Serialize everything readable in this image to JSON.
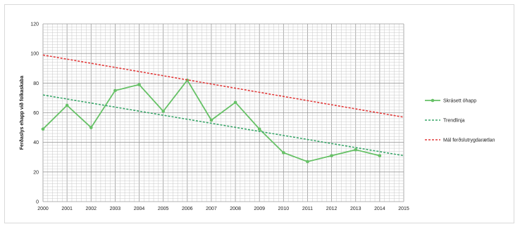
{
  "colors": {
    "series": "#66c166",
    "trend": "#3aa66a",
    "goal": "#e23b3b",
    "grid": "#c8c8c8",
    "gridMajor": "#9a9a9a"
  },
  "chart_data": {
    "type": "line",
    "title": "",
    "xlabel": "",
    "ylabel": "Ferðaslys ehapp við folkaskaba",
    "x": [
      2000,
      2001,
      2002,
      2003,
      2004,
      2005,
      2006,
      2007,
      2008,
      2009,
      2010,
      2011,
      2012,
      2013,
      2014,
      2015
    ],
    "xlim": [
      2000,
      2015
    ],
    "ylim": [
      0,
      120
    ],
    "yticks": [
      0,
      20,
      40,
      60,
      80,
      100,
      120
    ],
    "grid": true,
    "legend_position": "right",
    "series": [
      {
        "name": "Skrásett óhapp",
        "style": "solid-markers",
        "color": "#66c166",
        "x": [
          2000,
          2001,
          2002,
          2003,
          2004,
          2005,
          2006,
          2007,
          2008,
          2009,
          2010,
          2011,
          2012,
          2013,
          2014
        ],
        "y": [
          49,
          65,
          50,
          75,
          79,
          61,
          82,
          55,
          67,
          49,
          33,
          27,
          31,
          35,
          31
        ]
      },
      {
        "name": "Trendlinja",
        "style": "dashed",
        "color": "#3aa66a",
        "x": [
          2000,
          2015
        ],
        "y": [
          72,
          31
        ]
      },
      {
        "name": "Mál ferðslutrygdarætlan",
        "style": "dashed",
        "color": "#e23b3b",
        "x": [
          2000,
          2015
        ],
        "y": [
          99,
          57
        ]
      }
    ]
  }
}
